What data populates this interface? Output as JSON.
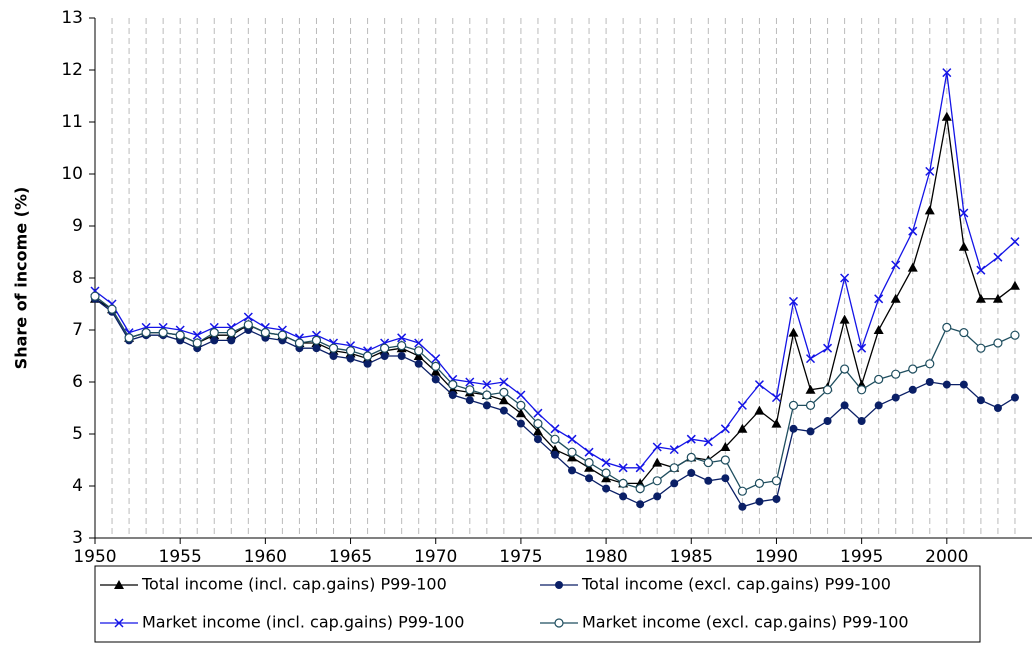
{
  "chart_data": {
    "type": "line",
    "y_label": "Share of income (%)",
    "x": [
      1950,
      1951,
      1952,
      1953,
      1954,
      1955,
      1956,
      1957,
      1958,
      1959,
      1960,
      1961,
      1962,
      1963,
      1964,
      1965,
      1966,
      1967,
      1968,
      1969,
      1970,
      1971,
      1972,
      1973,
      1974,
      1975,
      1976,
      1977,
      1978,
      1979,
      1980,
      1981,
      1982,
      1983,
      1984,
      1985,
      1986,
      1987,
      1988,
      1989,
      1990,
      1991,
      1992,
      1993,
      1994,
      1995,
      1996,
      1997,
      1998,
      1999,
      2000,
      2001,
      2002,
      2003,
      2004
    ],
    "xlim": [
      1950,
      2005
    ],
    "xticks": [
      1950,
      1955,
      1960,
      1965,
      1970,
      1975,
      1980,
      1985,
      1990,
      1995,
      2000
    ],
    "ylim": [
      3,
      13
    ],
    "yticks": [
      3,
      4,
      5,
      6,
      7,
      8,
      9,
      10,
      11,
      12,
      13
    ],
    "grid": true,
    "legend": "bottom",
    "series": [
      {
        "name": "Total income (incl. cap.gains) P99-100",
        "color": "#000000",
        "marker": "triangle",
        "values": [
          7.6,
          7.4,
          6.85,
          6.95,
          6.95,
          6.9,
          6.75,
          6.9,
          6.9,
          7.1,
          6.95,
          6.9,
          6.75,
          6.75,
          6.6,
          6.55,
          6.45,
          6.6,
          6.65,
          6.5,
          6.2,
          5.85,
          5.8,
          5.75,
          5.65,
          5.4,
          5.05,
          4.7,
          4.55,
          4.35,
          4.15,
          4.05,
          4.05,
          4.45,
          4.35,
          4.55,
          4.5,
          4.75,
          5.1,
          5.45,
          5.2,
          6.95,
          5.85,
          5.9,
          7.2,
          5.95,
          7.0,
          7.6,
          8.2,
          9.3,
          11.1,
          8.6,
          7.6,
          7.6,
          7.85
        ]
      },
      {
        "name": "Total income (excl. cap.gains) P99-100",
        "color": "#0a1f66",
        "marker": "circle",
        "values": [
          7.6,
          7.35,
          6.8,
          6.9,
          6.9,
          6.8,
          6.65,
          6.8,
          6.8,
          7.0,
          6.85,
          6.8,
          6.65,
          6.65,
          6.5,
          6.45,
          6.35,
          6.5,
          6.5,
          6.35,
          6.05,
          5.75,
          5.65,
          5.55,
          5.45,
          5.2,
          4.9,
          4.6,
          4.3,
          4.15,
          3.95,
          3.8,
          3.65,
          3.8,
          4.05,
          4.25,
          4.1,
          4.15,
          3.6,
          3.7,
          3.75,
          5.1,
          5.05,
          5.25,
          5.55,
          5.25,
          5.55,
          5.7,
          5.85,
          6.0,
          5.95,
          5.95,
          5.65,
          5.5,
          5.7
        ]
      },
      {
        "name": "Market income (incl. cap.gains) P99-100",
        "color": "#1414e6",
        "marker": "x",
        "values": [
          7.75,
          7.5,
          6.95,
          7.05,
          7.05,
          7.0,
          6.9,
          7.05,
          7.05,
          7.25,
          7.05,
          7.0,
          6.85,
          6.9,
          6.75,
          6.7,
          6.6,
          6.75,
          6.85,
          6.75,
          6.45,
          6.05,
          6.0,
          5.95,
          6.0,
          5.75,
          5.4,
          5.1,
          4.9,
          4.65,
          4.45,
          4.35,
          4.35,
          4.75,
          4.7,
          4.9,
          4.85,
          5.1,
          5.55,
          5.95,
          5.7,
          7.55,
          6.45,
          6.65,
          8.0,
          6.65,
          7.6,
          8.25,
          8.9,
          10.05,
          11.95,
          9.25,
          8.15,
          8.4,
          8.7
        ]
      },
      {
        "name": "Market income (excl. cap.gains) P99-100",
        "color": "#1f4e5f",
        "marker": "open-circle",
        "values": [
          7.65,
          7.4,
          6.85,
          6.95,
          6.95,
          6.9,
          6.75,
          6.95,
          6.95,
          7.1,
          6.95,
          6.9,
          6.75,
          6.8,
          6.65,
          6.6,
          6.5,
          6.65,
          6.7,
          6.6,
          6.3,
          5.95,
          5.85,
          5.75,
          5.8,
          5.55,
          5.2,
          4.9,
          4.65,
          4.45,
          4.25,
          4.05,
          3.95,
          4.1,
          4.35,
          4.55,
          4.45,
          4.5,
          3.9,
          4.05,
          4.1,
          5.55,
          5.55,
          5.85,
          6.25,
          5.85,
          6.05,
          6.15,
          6.25,
          6.35,
          7.05,
          6.95,
          6.65,
          6.75,
          6.9
        ]
      }
    ]
  }
}
